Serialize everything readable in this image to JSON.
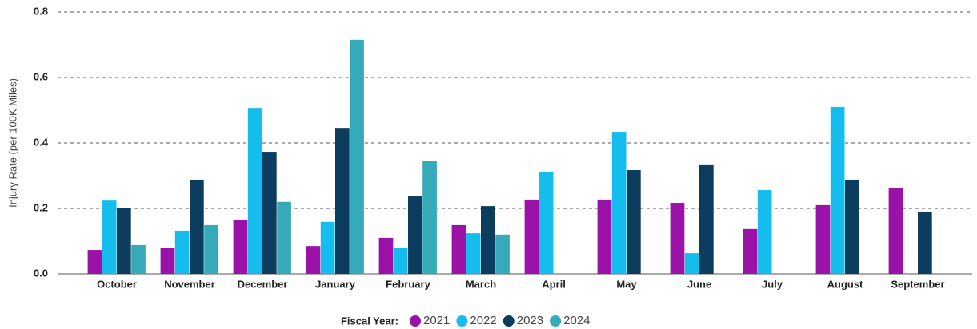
{
  "chart_data": {
    "type": "bar",
    "y_label": "Injury Rate (per 100K Miles)",
    "legend_title": "Fiscal Year:",
    "categories": [
      "October",
      "November",
      "December",
      "January",
      "February",
      "March",
      "April",
      "May",
      "June",
      "July",
      "August",
      "September"
    ],
    "series": [
      {
        "name": "2021",
        "color": "#9b12a8",
        "values": [
          0.073,
          0.08,
          0.166,
          0.085,
          0.11,
          0.149,
          0.227,
          0.227,
          0.217,
          0.137,
          0.21,
          0.261
        ]
      },
      {
        "name": "2022",
        "color": "#14bdee",
        "values": [
          0.224,
          0.132,
          0.507,
          0.159,
          0.08,
          0.124,
          0.312,
          0.434,
          0.063,
          0.256,
          0.51,
          null
        ]
      },
      {
        "name": "2023",
        "color": "#0c3d5e",
        "values": [
          0.2,
          0.288,
          0.373,
          0.446,
          0.239,
          0.207,
          null,
          0.317,
          0.332,
          null,
          0.288,
          0.188
        ]
      },
      {
        "name": "2024",
        "color": "#36aab8",
        "values": [
          0.088,
          0.149,
          0.22,
          0.715,
          0.346,
          0.12,
          null,
          null,
          null,
          null,
          null,
          null
        ]
      }
    ],
    "ylim": [
      0,
      0.8
    ],
    "yticks": [
      {
        "value": 0,
        "label": "0.0"
      },
      0.2,
      0.4,
      0.6,
      0.8
    ],
    "grid": true,
    "legend_position": "bottom"
  }
}
